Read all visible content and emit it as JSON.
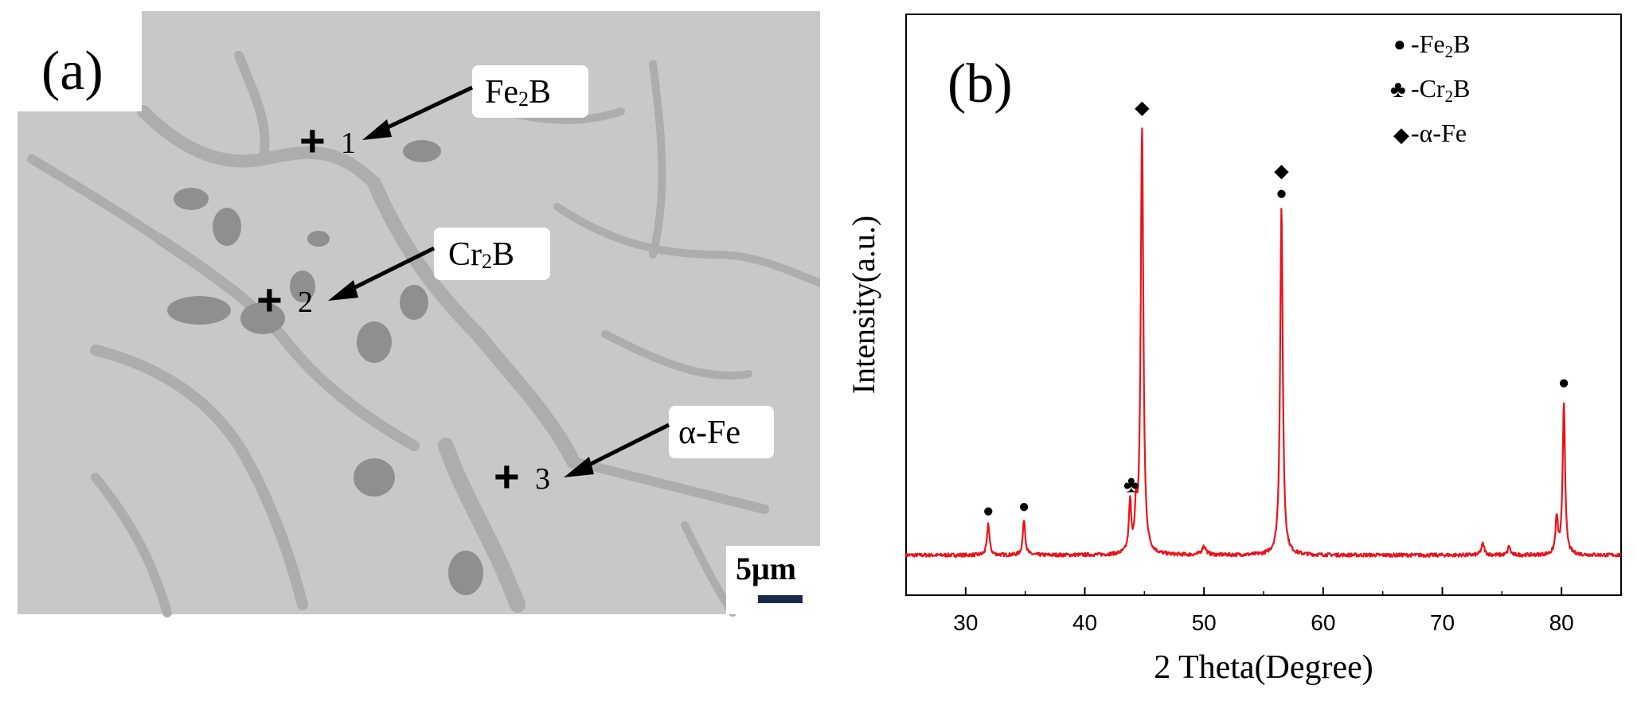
{
  "panel_a": {
    "label": "(a)",
    "phase_labels": [
      {
        "name": "Fe2B",
        "main": "Fe",
        "sub": "2",
        "tail": "B"
      },
      {
        "name": "Cr2B",
        "main": "Cr",
        "sub": "2",
        "tail": "B"
      },
      {
        "name": "alpha-Fe",
        "main": "α-Fe",
        "sub": "",
        "tail": ""
      }
    ],
    "points": [
      "1",
      "2",
      "3"
    ],
    "scale_bar": "5μm",
    "colors": {
      "matrix": "#c8c8c8",
      "boundary": "#adadad",
      "dark_phase": "#8f8f8f"
    }
  },
  "chart_data": {
    "type": "line",
    "panel_label": "(b)",
    "xlabel": "2 Theta(Degree)",
    "ylabel": "Intensity(a.u.)",
    "xlim": [
      25,
      85
    ],
    "ylim": [
      0,
      1
    ],
    "xticks": [
      30,
      40,
      50,
      60,
      70,
      80
    ],
    "series_color": "#e8141c",
    "baseline": 0.05,
    "series": [
      {
        "peaks": [
          {
            "x": 31.9,
            "y": 0.12,
            "width": 0.12
          },
          {
            "x": 34.9,
            "y": 0.13,
            "width": 0.12
          },
          {
            "x": 43.8,
            "y": 0.16,
            "width": 0.12
          },
          {
            "x": 44.3,
            "y": 0.14,
            "width": 0.1
          },
          {
            "x": 44.8,
            "y": 1.0,
            "width": 0.13
          },
          {
            "x": 50.0,
            "y": 0.07,
            "width": 0.2
          },
          {
            "x": 56.5,
            "y": 0.82,
            "width": 0.13
          },
          {
            "x": 73.4,
            "y": 0.075,
            "width": 0.15
          },
          {
            "x": 75.6,
            "y": 0.07,
            "width": 0.12
          },
          {
            "x": 79.6,
            "y": 0.13,
            "width": 0.12
          },
          {
            "x": 80.2,
            "y": 0.39,
            "width": 0.12
          }
        ]
      }
    ],
    "peak_markers": [
      {
        "x": 31.9,
        "y": 0.135,
        "symbols": [
          "●"
        ]
      },
      {
        "x": 34.9,
        "y": 0.145,
        "symbols": [
          "●"
        ]
      },
      {
        "x": 43.9,
        "y": 0.19,
        "symbols": [
          "♣"
        ]
      },
      {
        "x": 44.8,
        "y": 1.03,
        "symbols": [
          "◆"
        ]
      },
      {
        "x": 56.5,
        "y": 0.84,
        "symbols": [
          "◆",
          "●"
        ]
      },
      {
        "x": 80.2,
        "y": 0.42,
        "symbols": [
          "●"
        ]
      }
    ],
    "legend_position": "top-right",
    "legend": [
      {
        "symbol": "●",
        "label_main": "-Fe",
        "sub": "2",
        "tail": "B"
      },
      {
        "symbol": "♣",
        "label_main": "-Cr",
        "sub": "2",
        "tail": "B"
      },
      {
        "symbol": "◆",
        "label_main": "-α-Fe",
        "sub": "",
        "tail": ""
      }
    ]
  }
}
